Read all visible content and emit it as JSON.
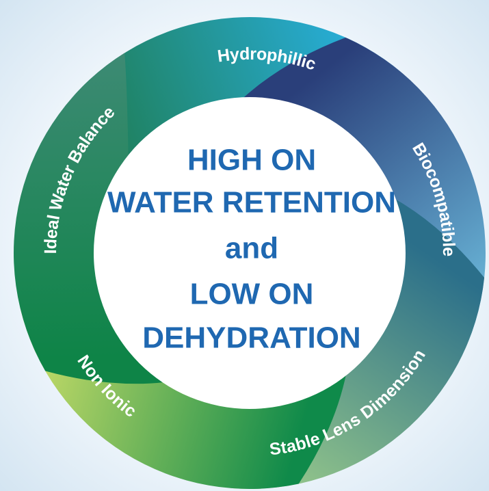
{
  "center_text": {
    "lines": [
      "HIGH ON",
      "WATER RETENTION",
      "and",
      "LOW ON",
      "DEHYDRATION"
    ]
  },
  "ring": {
    "labels": [
      "Hydrophillic",
      "Biocompatible",
      "Stable Lens Dimension",
      "Non Ionic",
      "Ideal Water Balance"
    ]
  }
}
